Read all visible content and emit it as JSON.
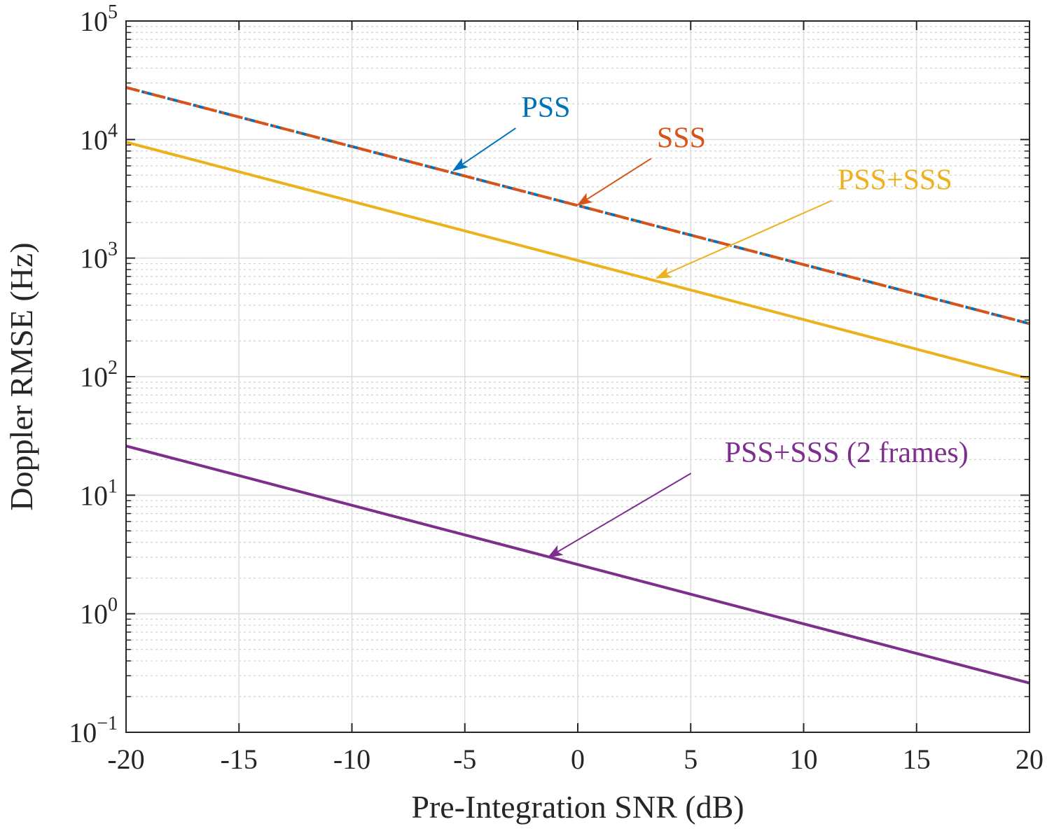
{
  "chart_data": {
    "type": "line",
    "title": "",
    "xlabel": "Pre-Integration SNR (dB)",
    "ylabel": "Doppler RMSE (Hz)",
    "xlim": [
      -20,
      20
    ],
    "ylim_exponent": [
      -1,
      5
    ],
    "yscale": "log",
    "grid": true,
    "minor_grid": true,
    "x_ticks": [
      -20,
      -15,
      -10,
      -5,
      0,
      5,
      10,
      15,
      20
    ],
    "x_tick_labels": [
      "-20",
      "-15",
      "-10",
      "-5",
      "0",
      "5",
      "10",
      "15",
      "20"
    ],
    "y_ticks": [
      {
        "base": "10",
        "exponent": "5"
      },
      {
        "base": "10",
        "exponent": "4"
      },
      {
        "base": "10",
        "exponent": "3"
      },
      {
        "base": "10",
        "exponent": "2"
      },
      {
        "base": "10",
        "exponent": "1"
      },
      {
        "base": "10",
        "exponent": "0"
      },
      {
        "base": "10",
        "exponent": "−1"
      }
    ],
    "y_tick_values": [
      100000,
      10000,
      1000,
      100,
      10,
      1,
      0.1
    ],
    "series": [
      {
        "name": "PSS",
        "color": "#0072BD",
        "style": "dashdot",
        "x": [
          -20,
          20
        ],
        "y": [
          27500,
          280
        ]
      },
      {
        "name": "SSS",
        "color": "#D95319",
        "style": "dashdot",
        "x": [
          -20,
          20
        ],
        "y": [
          27500,
          280
        ]
      },
      {
        "name": "PSS+SSS",
        "color": "#EDB120",
        "style": "solid",
        "x": [
          -20,
          20
        ],
        "y": [
          9500,
          96
        ]
      },
      {
        "name": "PSS+SSS (2 frames)",
        "color": "#7E2F8E",
        "style": "solid",
        "x": [
          -20,
          20
        ],
        "y": [
          26,
          0.26
        ]
      }
    ],
    "annotations": [
      {
        "text": "PSS",
        "color": "#0072BD",
        "label_at": [
          -2.5,
          15500
        ],
        "arrow_to": [
          -5.5,
          5500
        ]
      },
      {
        "text": "SSS",
        "color": "#D95319",
        "label_at": [
          3.5,
          8600
        ],
        "arrow_to": [
          0,
          2800
        ]
      },
      {
        "text": "PSS+SSS",
        "color": "#EDB120",
        "label_at": [
          11.5,
          3800
        ],
        "arrow_to": [
          3.5,
          680
        ]
      },
      {
        "text": "PSS+SSS (2 frames)",
        "color": "#7E2F8E",
        "label_at": [
          6.5,
          19
        ],
        "arrow_to": [
          -1.3,
          3
        ]
      }
    ]
  }
}
